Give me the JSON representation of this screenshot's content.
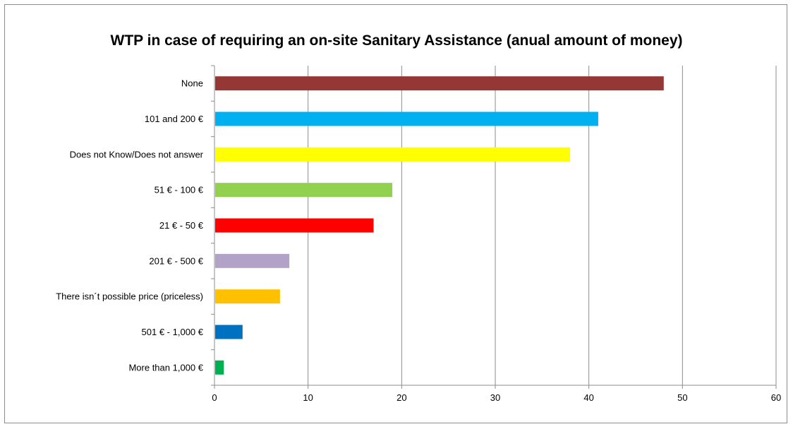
{
  "chart_data": {
    "type": "bar",
    "orientation": "horizontal",
    "title": "WTP in case of requiring an on-site Sanitary Assistance  (anual amount of money)",
    "categories": [
      "None",
      "101 and 200 €",
      "Does not Know/Does not answer",
      "51 € - 100 €",
      "21 € - 50 €",
      "201 € -  500 €",
      "There isn´t possible price (priceless)",
      "501 € - 1,000 €",
      "More than 1,000 €"
    ],
    "values": [
      48,
      41,
      38,
      19,
      17,
      8,
      7,
      3,
      1
    ],
    "colors": [
      "#953735",
      "#00b0f0",
      "#ffff00",
      "#92d050",
      "#ff0000",
      "#b3a2c7",
      "#ffc000",
      "#0070c0",
      "#00b050"
    ],
    "xlim": [
      0,
      60
    ],
    "xticks": [
      "0",
      "10",
      "20",
      "30",
      "40",
      "50",
      "60"
    ],
    "grid": true,
    "legend": "none"
  }
}
